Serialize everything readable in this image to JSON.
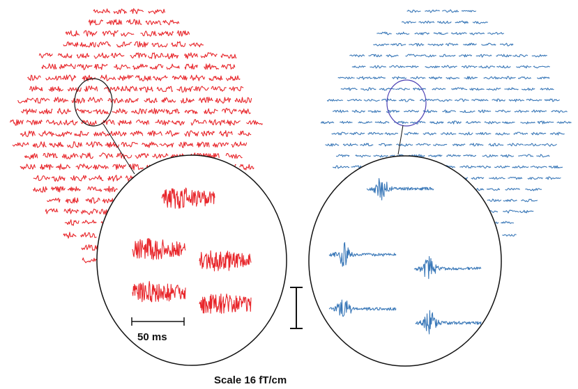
{
  "labels": {
    "time_scale": "50 ms",
    "amplitude_scale": "Scale 16 fT/cm"
  },
  "colors": {
    "left_panel": "#e8262b",
    "right_panel": "#3a78b8",
    "right_highlight_circle": "#4b3fb3",
    "outline": "#111111"
  }
}
